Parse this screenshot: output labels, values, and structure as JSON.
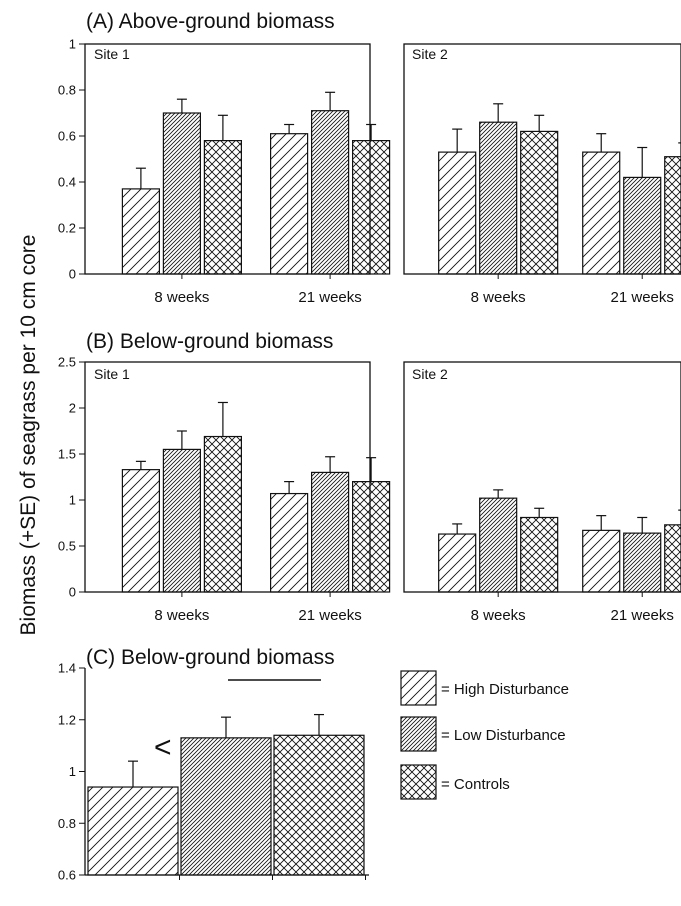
{
  "figure": {
    "ylabel": "Biomass (+SE) of seagrass per 10 cm core",
    "colors": {
      "ink": "#111111",
      "background": "#ffffff"
    },
    "legend": [
      {
        "series": "High Disturbance",
        "label": "= High Disturbance",
        "pattern": "sparse-diagonal"
      },
      {
        "series": "Low Disturbance",
        "label": "= Low Disturbance",
        "pattern": "dense-diagonal"
      },
      {
        "series": "Controls",
        "label": "= Controls",
        "pattern": "crosshatch"
      }
    ]
  },
  "chart_data": [
    {
      "id": "A",
      "type": "bar",
      "title": "(A) Above-ground biomass",
      "ylim": [
        0,
        1
      ],
      "yticks": [
        "0",
        "0.2",
        "0.4",
        "0.6",
        "0.8",
        "1"
      ],
      "ytick_values": [
        0,
        0.2,
        0.4,
        0.6,
        0.8,
        1
      ],
      "series_names": [
        "High Disturbance",
        "Low Disturbance",
        "Controls"
      ],
      "panels": [
        {
          "site": "Site 1",
          "categories": [
            "8 weeks",
            "21 weeks"
          ],
          "values": [
            [
              0.37,
              0.7,
              0.58
            ],
            [
              0.61,
              0.71,
              0.58
            ]
          ],
          "errors": [
            [
              0.09,
              0.06,
              0.11
            ],
            [
              0.04,
              0.08,
              0.07
            ]
          ]
        },
        {
          "site": "Site 2",
          "categories": [
            "8 weeks",
            "21 weeks"
          ],
          "values": [
            [
              0.53,
              0.66,
              0.62
            ],
            [
              0.53,
              0.42,
              0.51
            ]
          ],
          "errors": [
            [
              0.1,
              0.08,
              0.07
            ],
            [
              0.08,
              0.13,
              0.06
            ]
          ]
        }
      ]
    },
    {
      "id": "B",
      "type": "bar",
      "title": "(B) Below-ground biomass",
      "ylim": [
        0,
        2.5
      ],
      "yticks": [
        "0",
        "0.5",
        "1",
        "1.5",
        "2",
        "2.5"
      ],
      "ytick_values": [
        0,
        0.5,
        1,
        1.5,
        2,
        2.5
      ],
      "series_names": [
        "High Disturbance",
        "Low Disturbance",
        "Controls"
      ],
      "panels": [
        {
          "site": "Site 1",
          "categories": [
            "8 weeks",
            "21 weeks"
          ],
          "values": [
            [
              1.33,
              1.55,
              1.69
            ],
            [
              1.07,
              1.3,
              1.2
            ]
          ],
          "errors": [
            [
              0.09,
              0.2,
              0.37
            ],
            [
              0.13,
              0.17,
              0.26
            ]
          ]
        },
        {
          "site": "Site 2",
          "categories": [
            "8 weeks",
            "21 weeks"
          ],
          "values": [
            [
              0.63,
              1.02,
              0.81
            ],
            [
              0.67,
              0.64,
              0.73
            ]
          ],
          "errors": [
            [
              0.11,
              0.09,
              0.1
            ],
            [
              0.16,
              0.17,
              0.16
            ]
          ]
        }
      ]
    },
    {
      "id": "C",
      "type": "bar",
      "title": "(C) Below-ground biomass",
      "ylim": [
        0.6,
        1.4
      ],
      "yticks": [
        "0.6",
        "0.8",
        "1",
        "1.2",
        "1.4"
      ],
      "ytick_values": [
        0.6,
        0.8,
        1.0,
        1.2,
        1.4
      ],
      "categories": [
        "High Disturbance",
        "Low Disturbance",
        "Controls"
      ],
      "values": [
        0.94,
        1.13,
        1.14
      ],
      "errors": [
        0.1,
        0.08,
        0.08
      ],
      "annotations": {
        "less_than": "<"
      }
    }
  ]
}
